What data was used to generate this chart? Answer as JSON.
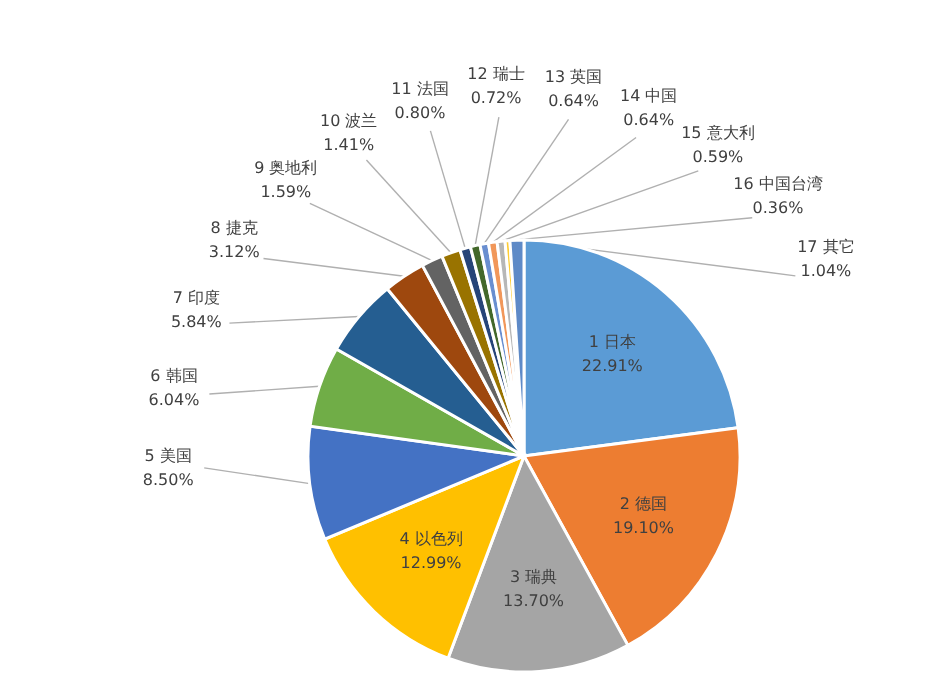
{
  "chart_data": {
    "type": "pie",
    "categories": [
      "1 日本",
      "2 德国",
      "3 瑞典",
      "4 以色列",
      "5 美国",
      "6 韩国",
      "7 印度",
      "8 捷克",
      "9 奥地利",
      "10 波兰",
      "11 法国",
      "12 瑞士",
      "13 英国",
      "14 中国",
      "15 意大利",
      "16 中国台湾",
      "17 其它"
    ],
    "values": [
      22.91,
      19.1,
      13.7,
      12.99,
      8.5,
      6.04,
      5.84,
      3.12,
      1.59,
      1.41,
      0.8,
      0.72,
      0.64,
      0.64,
      0.59,
      0.36,
      1.04
    ],
    "value_labels": [
      "22.91%",
      "19.10%",
      "13.70%",
      "12.99%",
      "8.50%",
      "6.04%",
      "5.84%",
      "3.12%",
      "1.59%",
      "1.41%",
      "0.80%",
      "0.72%",
      "0.64%",
      "0.64%",
      "0.59%",
      "0.36%",
      "1.04%"
    ],
    "colors": [
      "#5b9bd5",
      "#ed7d31",
      "#a5a5a5",
      "#ffc000",
      "#4472c4",
      "#70ad47",
      "#255e91",
      "#9e480e",
      "#636363",
      "#997300",
      "#264478",
      "#43682b",
      "#698ed0",
      "#f1975a",
      "#b7b7b7",
      "#ffcd33",
      "#5e8ac7"
    ]
  }
}
